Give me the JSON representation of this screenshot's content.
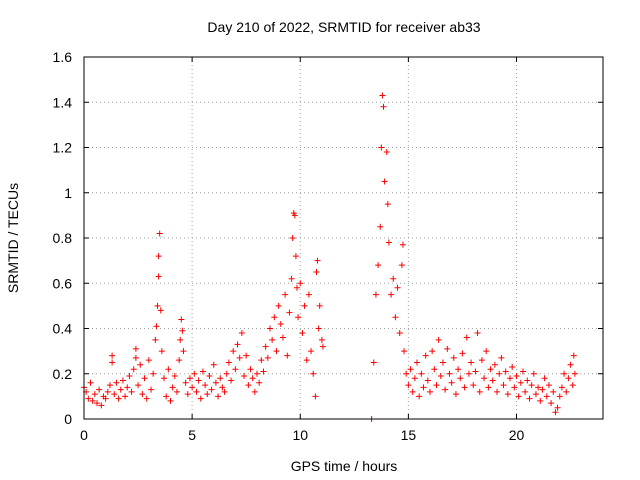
{
  "chart_data": {
    "type": "scatter",
    "title": "Day 210 of 2022, SRMTID for receiver ab33",
    "xlabel": "GPS time / hours",
    "ylabel": "SRMTID / TECUs",
    "xlim": [
      0,
      24
    ],
    "ylim": [
      0,
      1.6
    ],
    "xticks": [
      0,
      5,
      10,
      15,
      20
    ],
    "xtick_labels": [
      "0",
      "5",
      "10",
      "15",
      "20"
    ],
    "yticks": [
      0,
      0.2,
      0.4,
      0.6,
      0.8,
      1.0,
      1.2,
      1.4,
      1.6
    ],
    "ytick_labels": [
      "0",
      "0.2",
      "0.4",
      "0.6",
      "0.8",
      "1",
      "1.2",
      "1.4",
      "1.6"
    ],
    "grid": true,
    "marker": "+",
    "color": "#ff0000",
    "series": [
      {
        "name": "SRMTID",
        "points": [
          [
            0.0,
            0.14
          ],
          [
            0.1,
            0.12
          ],
          [
            0.2,
            0.09
          ],
          [
            0.3,
            0.16
          ],
          [
            0.4,
            0.08
          ],
          [
            0.5,
            0.11
          ],
          [
            0.6,
            0.07
          ],
          [
            0.7,
            0.13
          ],
          [
            0.8,
            0.06
          ],
          [
            0.9,
            0.1
          ],
          [
            1.0,
            0.09
          ],
          [
            1.1,
            0.12
          ],
          [
            1.2,
            0.15
          ],
          [
            1.3,
            0.28
          ],
          [
            1.3,
            0.25
          ],
          [
            1.4,
            0.11
          ],
          [
            1.5,
            0.16
          ],
          [
            1.6,
            0.09
          ],
          [
            1.7,
            0.13
          ],
          [
            1.8,
            0.17
          ],
          [
            1.9,
            0.1
          ],
          [
            2.0,
            0.14
          ],
          [
            2.1,
            0.19
          ],
          [
            2.2,
            0.12
          ],
          [
            2.3,
            0.22
          ],
          [
            2.4,
            0.31
          ],
          [
            2.4,
            0.27
          ],
          [
            2.5,
            0.15
          ],
          [
            2.6,
            0.24
          ],
          [
            2.7,
            0.11
          ],
          [
            2.8,
            0.18
          ],
          [
            2.9,
            0.09
          ],
          [
            3.0,
            0.26
          ],
          [
            3.1,
            0.13
          ],
          [
            3.2,
            0.2
          ],
          [
            3.3,
            0.35
          ],
          [
            3.35,
            0.41
          ],
          [
            3.4,
            0.5
          ],
          [
            3.45,
            0.63
          ],
          [
            3.45,
            0.72
          ],
          [
            3.5,
            0.82
          ],
          [
            3.55,
            0.48
          ],
          [
            3.6,
            0.3
          ],
          [
            3.7,
            0.18
          ],
          [
            3.8,
            0.1
          ],
          [
            3.9,
            0.22
          ],
          [
            4.0,
            0.08
          ],
          [
            4.1,
            0.14
          ],
          [
            4.2,
            0.19
          ],
          [
            4.3,
            0.12
          ],
          [
            4.4,
            0.26
          ],
          [
            4.45,
            0.35
          ],
          [
            4.5,
            0.44
          ],
          [
            4.55,
            0.39
          ],
          [
            4.6,
            0.3
          ],
          [
            4.7,
            0.16
          ],
          [
            4.8,
            0.11
          ],
          [
            4.9,
            0.18
          ],
          [
            5.0,
            0.14
          ],
          [
            5.1,
            0.2
          ],
          [
            5.2,
            0.12
          ],
          [
            5.3,
            0.17
          ],
          [
            5.4,
            0.09
          ],
          [
            5.5,
            0.21
          ],
          [
            5.6,
            0.15
          ],
          [
            5.7,
            0.11
          ],
          [
            5.8,
            0.19
          ],
          [
            5.9,
            0.13
          ],
          [
            6.0,
            0.24
          ],
          [
            6.1,
            0.16
          ],
          [
            6.2,
            0.1
          ],
          [
            6.3,
            0.18
          ],
          [
            6.4,
            0.14
          ],
          [
            6.5,
            0.12
          ],
          [
            6.6,
            0.2
          ],
          [
            6.7,
            0.25
          ],
          [
            6.8,
            0.17
          ],
          [
            6.9,
            0.3
          ],
          [
            7.0,
            0.22
          ],
          [
            7.1,
            0.33
          ],
          [
            7.2,
            0.27
          ],
          [
            7.3,
            0.38
          ],
          [
            7.4,
            0.19
          ],
          [
            7.5,
            0.28
          ],
          [
            7.6,
            0.15
          ],
          [
            7.7,
            0.22
          ],
          [
            7.8,
            0.18
          ],
          [
            7.9,
            0.12
          ],
          [
            8.0,
            0.2
          ],
          [
            8.1,
            0.16
          ],
          [
            8.2,
            0.26
          ],
          [
            8.3,
            0.21
          ],
          [
            8.4,
            0.32
          ],
          [
            8.5,
            0.27
          ],
          [
            8.6,
            0.4
          ],
          [
            8.7,
            0.35
          ],
          [
            8.8,
            0.45
          ],
          [
            8.9,
            0.3
          ],
          [
            9.0,
            0.5
          ],
          [
            9.1,
            0.42
          ],
          [
            9.2,
            0.36
          ],
          [
            9.3,
            0.55
          ],
          [
            9.4,
            0.28
          ],
          [
            9.5,
            0.47
          ],
          [
            9.6,
            0.62
          ],
          [
            9.65,
            0.8
          ],
          [
            9.7,
            0.91
          ],
          [
            9.75,
            0.9
          ],
          [
            9.8,
            0.72
          ],
          [
            9.85,
            0.58
          ],
          [
            9.9,
            0.45
          ],
          [
            10.0,
            0.6
          ],
          [
            10.1,
            0.38
          ],
          [
            10.2,
            0.5
          ],
          [
            10.3,
            0.26
          ],
          [
            10.4,
            0.55
          ],
          [
            10.5,
            0.3
          ],
          [
            10.6,
            0.2
          ],
          [
            10.7,
            0.1
          ],
          [
            10.75,
            0.65
          ],
          [
            10.8,
            0.7
          ],
          [
            10.85,
            0.4
          ],
          [
            10.9,
            0.5
          ],
          [
            11.0,
            0.35
          ],
          [
            11.05,
            0.32
          ],
          [
            13.3,
            0.0
          ],
          [
            13.4,
            0.25
          ],
          [
            13.5,
            0.55
          ],
          [
            13.6,
            0.68
          ],
          [
            13.7,
            0.85
          ],
          [
            13.75,
            1.2
          ],
          [
            13.8,
            1.43
          ],
          [
            13.85,
            1.38
          ],
          [
            13.9,
            1.05
          ],
          [
            14.0,
            1.18
          ],
          [
            14.05,
            0.95
          ],
          [
            14.1,
            0.78
          ],
          [
            14.2,
            0.55
          ],
          [
            14.3,
            0.62
          ],
          [
            14.4,
            0.45
          ],
          [
            14.5,
            0.58
          ],
          [
            14.6,
            0.38
          ],
          [
            14.7,
            0.68
          ],
          [
            14.75,
            0.77
          ],
          [
            14.8,
            0.3
          ],
          [
            14.9,
            0.2
          ],
          [
            15.0,
            0.15
          ],
          [
            15.1,
            0.22
          ],
          [
            15.2,
            0.12
          ],
          [
            15.3,
            0.18
          ],
          [
            15.4,
            0.25
          ],
          [
            15.5,
            0.1
          ],
          [
            15.6,
            0.2
          ],
          [
            15.7,
            0.14
          ],
          [
            15.8,
            0.28
          ],
          [
            15.9,
            0.17
          ],
          [
            16.0,
            0.12
          ],
          [
            16.1,
            0.3
          ],
          [
            16.2,
            0.22
          ],
          [
            16.3,
            0.15
          ],
          [
            16.4,
            0.35
          ],
          [
            16.5,
            0.19
          ],
          [
            16.6,
            0.25
          ],
          [
            16.7,
            0.13
          ],
          [
            16.8,
            0.31
          ],
          [
            16.9,
            0.2
          ],
          [
            17.0,
            0.16
          ],
          [
            17.1,
            0.27
          ],
          [
            17.2,
            0.11
          ],
          [
            17.3,
            0.22
          ],
          [
            17.4,
            0.18
          ],
          [
            17.5,
            0.29
          ],
          [
            17.6,
            0.14
          ],
          [
            17.7,
            0.36
          ],
          [
            17.8,
            0.2
          ],
          [
            17.9,
            0.25
          ],
          [
            18.0,
            0.15
          ],
          [
            18.1,
            0.21
          ],
          [
            18.2,
            0.38
          ],
          [
            18.3,
            0.12
          ],
          [
            18.4,
            0.26
          ],
          [
            18.5,
            0.18
          ],
          [
            18.6,
            0.3
          ],
          [
            18.7,
            0.14
          ],
          [
            18.8,
            0.22
          ],
          [
            18.9,
            0.17
          ],
          [
            19.0,
            0.24
          ],
          [
            19.1,
            0.12
          ],
          [
            19.2,
            0.2
          ],
          [
            19.3,
            0.27
          ],
          [
            19.4,
            0.15
          ],
          [
            19.5,
            0.21
          ],
          [
            19.6,
            0.11
          ],
          [
            19.7,
            0.18
          ],
          [
            19.8,
            0.23
          ],
          [
            19.9,
            0.14
          ],
          [
            20.0,
            0.19
          ],
          [
            20.1,
            0.1
          ],
          [
            20.2,
            0.16
          ],
          [
            20.3,
            0.21
          ],
          [
            20.4,
            0.12
          ],
          [
            20.5,
            0.17
          ],
          [
            20.6,
            0.09
          ],
          [
            20.7,
            0.15
          ],
          [
            20.8,
            0.2
          ],
          [
            20.9,
            0.11
          ],
          [
            21.0,
            0.14
          ],
          [
            21.1,
            0.08
          ],
          [
            21.2,
            0.13
          ],
          [
            21.3,
            0.18
          ],
          [
            21.4,
            0.1
          ],
          [
            21.5,
            0.15
          ],
          [
            21.6,
            0.07
          ],
          [
            21.7,
            0.12
          ],
          [
            21.8,
            0.03
          ],
          [
            21.9,
            0.05
          ],
          [
            22.0,
            0.1
          ],
          [
            22.1,
            0.14
          ],
          [
            22.2,
            0.2
          ],
          [
            22.3,
            0.12
          ],
          [
            22.4,
            0.18
          ],
          [
            22.5,
            0.24
          ],
          [
            22.6,
            0.15
          ],
          [
            22.65,
            0.28
          ],
          [
            22.7,
            0.2
          ]
        ]
      }
    ]
  }
}
